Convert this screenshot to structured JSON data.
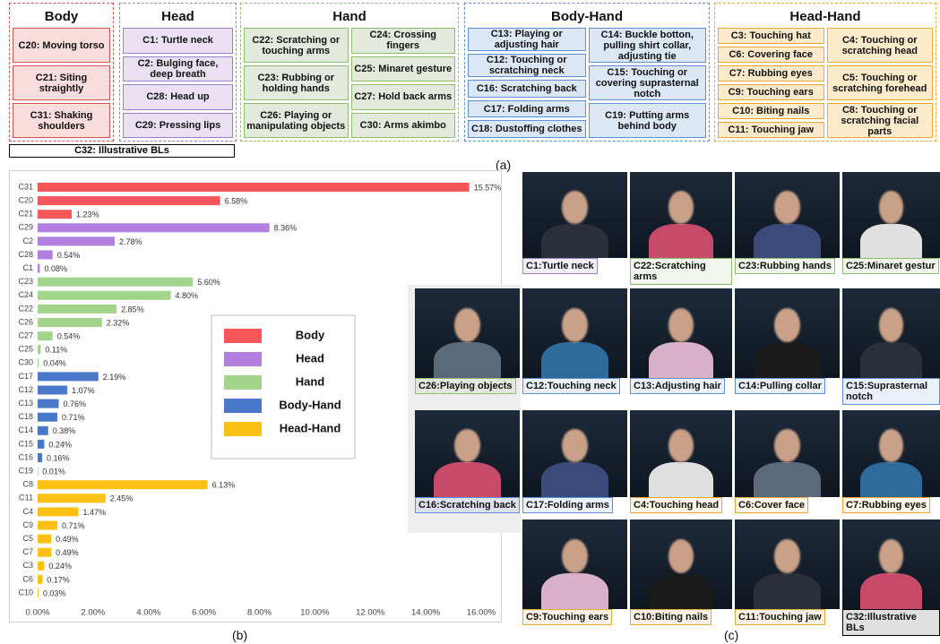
{
  "taxonomy": {
    "groups": [
      {
        "title": "Body",
        "color": "#d9534f",
        "fill": "#f9dcdc",
        "columns": [
          [
            "C20: Moving torso",
            "C21: Siting straightly",
            "C31: Shaking shoulders"
          ]
        ]
      },
      {
        "title": "Head",
        "color": "#9b7fc8",
        "fill": "#e9e1f2",
        "columns": [
          [
            "C1: Turtle neck",
            "C2: Bulging face, deep breath",
            "C28: Head up",
            "C29: Pressing lips"
          ]
        ]
      },
      {
        "title": "Hand",
        "color": "#8cbf6c",
        "fill": "#e3e9dc",
        "columns": [
          [
            "C22: Scratching or touching arms",
            "C23: Rubbing or holding hands",
            "C26: Playing or manipulating objects"
          ],
          [
            "C24: Crossing fingers",
            "C25: Minaret gesture",
            "C27: Hold back arms",
            "C30: Arms akimbo"
          ]
        ]
      },
      {
        "title": "Body-Hand",
        "color": "#5b8fd6",
        "fill": "#dce7f6",
        "columns": [
          [
            "C13: Playing or adjusting hair",
            "C12: Touching or scratching neck",
            "C16: Scratching back",
            "C17: Folding arms",
            "C18: Dustoffing clothes"
          ],
          [
            "C14: Buckle botton, pulling shirt collar, adjusting tie",
            "C15: Touching or covering suprasternal notch",
            "C19: Putting arms behind body"
          ]
        ]
      },
      {
        "title": "Head-Hand",
        "color": "#f0a830",
        "fill": "#fdeacb",
        "columns": [
          [
            "C3: Touching hat",
            "C6: Covering face",
            "C7: Rubbing eyes",
            "C9: Touching ears",
            "C10: Biting nails",
            "C11: Touching jaw"
          ],
          [
            "C4: Touching or scratching head",
            "C5: Touching or scratching forehead",
            "C8: Touching or scratching facial parts"
          ]
        ]
      }
    ],
    "extra": "C32: Illustrative BLs"
  },
  "panel_labels": [
    "(a)",
    "(b)",
    "(c)"
  ],
  "chart_data": {
    "type": "bar",
    "orientation": "horizontal",
    "xlim": [
      0,
      16
    ],
    "xticks": [
      {
        "value": 0,
        "label": "0.00%"
      },
      {
        "value": 2,
        "label": "2.00%"
      },
      {
        "value": 4,
        "label": "4.00%"
      },
      {
        "value": 6,
        "label": "6.00%"
      },
      {
        "value": 8,
        "label": "8.00%"
      },
      {
        "value": 10,
        "label": "10.00%"
      },
      {
        "value": 12,
        "label": "12.00%"
      },
      {
        "value": 14,
        "label": "14.00%"
      },
      {
        "value": 16,
        "label": "16.00%"
      }
    ],
    "legend": "center",
    "series": [
      {
        "name": "Body",
        "color": "#f95659",
        "categories": [
          "C31",
          "C20",
          "C21"
        ],
        "values": [
          15.57,
          6.58,
          1.23
        ],
        "value_labels": [
          "15.57%",
          "6.58%",
          "1.23%"
        ]
      },
      {
        "name": "Head",
        "color": "#b27ee0",
        "categories": [
          "C29",
          "C2",
          "C28",
          "C1"
        ],
        "values": [
          8.36,
          2.78,
          0.54,
          0.08
        ],
        "value_labels": [
          "8.36%",
          "2.78%",
          "0.54%",
          "0.08%"
        ]
      },
      {
        "name": "Hand",
        "color": "#a2d48c",
        "categories": [
          "C23",
          "C24",
          "C22",
          "C26",
          "C27",
          "C25",
          "C30"
        ],
        "values": [
          5.6,
          4.8,
          2.85,
          2.32,
          0.54,
          0.11,
          0.04
        ],
        "value_labels": [
          "5.60%",
          "4.80%",
          "2.85%",
          "2.32%",
          "0.54%",
          "0.11%",
          "0.04%"
        ]
      },
      {
        "name": "Body-Hand",
        "color": "#4a78c8",
        "categories": [
          "C17",
          "C12",
          "C13",
          "C18",
          "C14",
          "C15",
          "C16",
          "C19"
        ],
        "values": [
          2.19,
          1.07,
          0.76,
          0.71,
          0.38,
          0.24,
          0.16,
          0.01
        ],
        "value_labels": [
          "2.19%",
          "1.07%",
          "0.76%",
          "0.71%",
          "0.38%",
          "0.24%",
          "0.16%",
          "0.01%"
        ]
      },
      {
        "name": "Head-Hand",
        "color": "#fcc114",
        "categories": [
          "C8",
          "C11",
          "C4",
          "C9",
          "C5",
          "C7",
          "C3",
          "C6",
          "C10"
        ],
        "values": [
          6.13,
          2.45,
          1.47,
          0.71,
          0.49,
          0.49,
          0.24,
          0.17,
          0.03
        ],
        "value_labels": [
          "6.13%",
          "2.45%",
          "1.47%",
          "0.71%",
          "0.49%",
          "0.49%",
          "0.24%",
          "0.17%",
          "0.03%"
        ]
      }
    ]
  },
  "gallery": {
    "rows": [
      [
        {
          "caption": "C1:Turtle neck",
          "color": "#9b7fc8"
        },
        {
          "caption": "C22:Scratching arms",
          "color": "#8cbf6c"
        },
        {
          "caption": "C23:Rubbing hands",
          "color": "#8cbf6c"
        },
        {
          "caption": "C25:Minaret gestur",
          "color": "#8cbf6c"
        }
      ],
      [
        {
          "caption": "C26:Playing objects",
          "color": "#8cbf6c"
        },
        {
          "caption": "C12:Touching neck",
          "color": "#5b8fd6"
        },
        {
          "caption": "C13:Adjusting hair",
          "color": "#5b8fd6"
        },
        {
          "caption": "C14:Pulling collar",
          "color": "#5b8fd6"
        },
        {
          "caption": "C15:Suprasternal notch",
          "color": "#5b8fd6"
        }
      ],
      [
        {
          "caption": "C16:Scratching back",
          "color": "#5b8fd6"
        },
        {
          "caption": "C17:Folding arms",
          "color": "#5b8fd6"
        },
        {
          "caption": "C4:Touching head",
          "color": "#f0a830"
        },
        {
          "caption": "C6:Cover face",
          "color": "#f0a830"
        },
        {
          "caption": "C7:Rubbing eyes",
          "color": "#f0a830"
        }
      ],
      [
        {
          "caption": "C9:Touching ears",
          "color": "#f0a830"
        },
        {
          "caption": "C10:Biting nails",
          "color": "#f0a830"
        },
        {
          "caption": "C11:Touching jaw",
          "color": "#f0a830"
        },
        {
          "caption": "C32:Illustrative BLs",
          "color": "#000000"
        }
      ]
    ]
  }
}
